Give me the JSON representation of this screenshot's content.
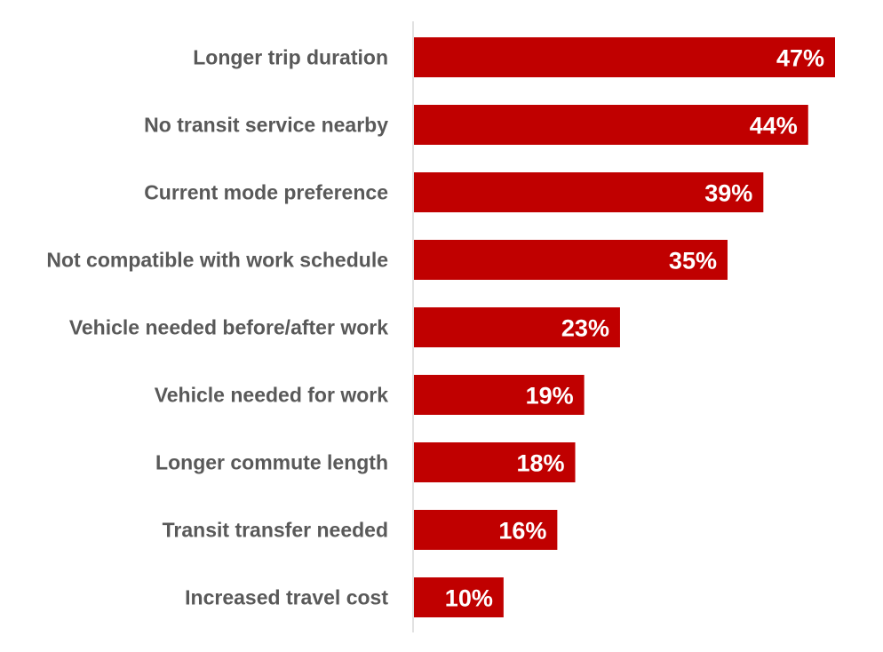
{
  "chart_data": {
    "type": "bar",
    "orientation": "horizontal",
    "categories": [
      "Longer trip duration",
      "No transit service nearby",
      "Current mode preference",
      "Not compatible with work schedule",
      "Vehicle needed before/after work",
      "Vehicle needed for work",
      "Longer commute length",
      "Transit transfer needed",
      "Increased travel cost"
    ],
    "values": [
      47,
      44,
      39,
      35,
      23,
      19,
      18,
      16,
      10
    ],
    "value_labels": [
      "47%",
      "44%",
      "39%",
      "35%",
      "23%",
      "19%",
      "18%",
      "16%",
      "10%"
    ],
    "unit": "%",
    "title": "",
    "xlabel": "",
    "ylabel": "",
    "xlim": [
      0,
      50
    ],
    "grid": false,
    "legend": "none",
    "bar_color": "#C00000",
    "label_color": "#595959",
    "value_label_color": "#FFFFFF"
  }
}
